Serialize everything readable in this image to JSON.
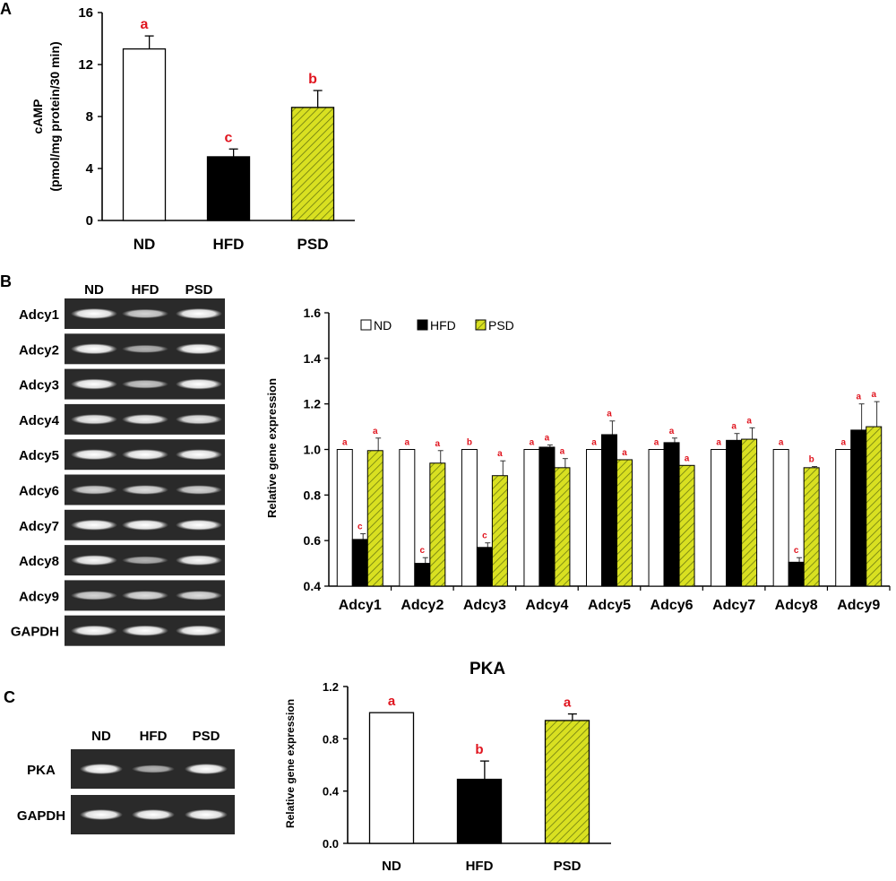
{
  "colors": {
    "nd": "#ffffff",
    "hfd": "#000000",
    "psd": "#d9e021",
    "letter": "#e0141e",
    "axis": "#000000",
    "gel_bg": "#2a2a2a",
    "gel_band": "#f2f2f2"
  },
  "panels": {
    "A": "A",
    "B": "B",
    "C": "C"
  },
  "gel_b": {
    "lane_labels": [
      "ND",
      "HFD",
      "PSD"
    ],
    "rows": [
      {
        "label": "Adcy1",
        "intensity": [
          1.0,
          0.7,
          1.0
        ]
      },
      {
        "label": "Adcy2",
        "intensity": [
          1.0,
          0.45,
          1.0
        ]
      },
      {
        "label": "Adcy3",
        "intensity": [
          1.0,
          0.6,
          1.0
        ]
      },
      {
        "label": "Adcy4",
        "intensity": [
          0.9,
          0.9,
          0.85
        ]
      },
      {
        "label": "Adcy5",
        "intensity": [
          1.0,
          1.0,
          1.0
        ]
      },
      {
        "label": "Adcy6",
        "intensity": [
          0.7,
          0.75,
          0.7
        ]
      },
      {
        "label": "Adcy7",
        "intensity": [
          1.0,
          1.0,
          1.0
        ]
      },
      {
        "label": "Adcy8",
        "intensity": [
          0.95,
          0.45,
          0.95
        ]
      },
      {
        "label": "Adcy9",
        "intensity": [
          0.7,
          0.75,
          0.75
        ]
      },
      {
        "label": "GAPDH",
        "intensity": [
          1.0,
          1.0,
          1.0
        ]
      }
    ]
  },
  "gel_c": {
    "lane_labels": [
      "ND",
      "HFD",
      "PSD"
    ],
    "rows": [
      {
        "label": "PKA",
        "intensity": [
          1.0,
          0.45,
          1.0
        ]
      },
      {
        "label": "GAPDH",
        "intensity": [
          1.0,
          1.0,
          1.0
        ]
      }
    ]
  },
  "chart_data": [
    {
      "type": "bar",
      "panel": "A",
      "title": "",
      "ylabel": "cAMP",
      "ylabel2": "(pmol/mg protein/30 min)",
      "categories": [
        "ND",
        "HFD",
        "PSD"
      ],
      "values": [
        13.2,
        4.9,
        8.7
      ],
      "errors": [
        1.0,
        0.6,
        1.3
      ],
      "letters": [
        "a",
        "c",
        "b"
      ],
      "ylim": [
        0,
        16
      ],
      "yticks": [
        0,
        4,
        8,
        12,
        16
      ]
    },
    {
      "type": "bar",
      "panel": "B",
      "title": "",
      "ylabel": "Relative gene expression",
      "categories": [
        "Adcy1",
        "Adcy2",
        "Adcy3",
        "Adcy4",
        "Adcy5",
        "Adcy6",
        "Adcy7",
        "Adcy8",
        "Adcy9"
      ],
      "series": [
        {
          "name": "ND",
          "values": [
            1.0,
            1.0,
            1.0,
            1.0,
            1.0,
            1.0,
            1.0,
            1.0,
            1.0
          ],
          "errors": [
            0,
            0,
            0,
            0,
            0,
            0,
            0,
            0,
            0
          ],
          "letters": [
            "a",
            "a",
            "b",
            "a",
            "a",
            "a",
            "a",
            "a",
            "a"
          ]
        },
        {
          "name": "HFD",
          "values": [
            0.605,
            0.5,
            0.57,
            1.01,
            1.065,
            1.03,
            1.04,
            0.505,
            1.085
          ],
          "errors": [
            0.025,
            0.025,
            0.02,
            0.01,
            0.06,
            0.02,
            0.03,
            0.02,
            0.115
          ],
          "letters": [
            "c",
            "c",
            "c",
            "a",
            "a",
            "a",
            "a",
            "c",
            "a"
          ]
        },
        {
          "name": "PSD",
          "values": [
            0.995,
            0.94,
            0.885,
            0.92,
            0.955,
            0.93,
            1.045,
            0.92,
            1.1
          ],
          "errors": [
            0.055,
            0.055,
            0.065,
            0.04,
            0.0,
            0.0,
            0.05,
            0.005,
            0.11
          ],
          "letters": [
            "a",
            "a",
            "a",
            "a",
            "a",
            "a",
            "a",
            "b",
            "a"
          ]
        }
      ],
      "legend": [
        "ND",
        "HFD",
        "PSD"
      ],
      "legend_position": "top-left",
      "ylim": [
        0.4,
        1.6
      ],
      "yticks": [
        "0.4",
        "0.6",
        "0.8",
        "1.0",
        "1.2",
        "1.4",
        "1.6"
      ]
    },
    {
      "type": "bar",
      "panel": "C",
      "title": "PKA",
      "ylabel": "Relative gene expression",
      "categories": [
        "ND",
        "HFD",
        "PSD"
      ],
      "values": [
        1.0,
        0.49,
        0.94
      ],
      "errors": [
        0.0,
        0.14,
        0.05
      ],
      "letters": [
        "a",
        "b",
        "a"
      ],
      "ylim": [
        0,
        1.2
      ],
      "yticks": [
        "0.0",
        "0.4",
        "0.8",
        "1.2"
      ]
    }
  ]
}
